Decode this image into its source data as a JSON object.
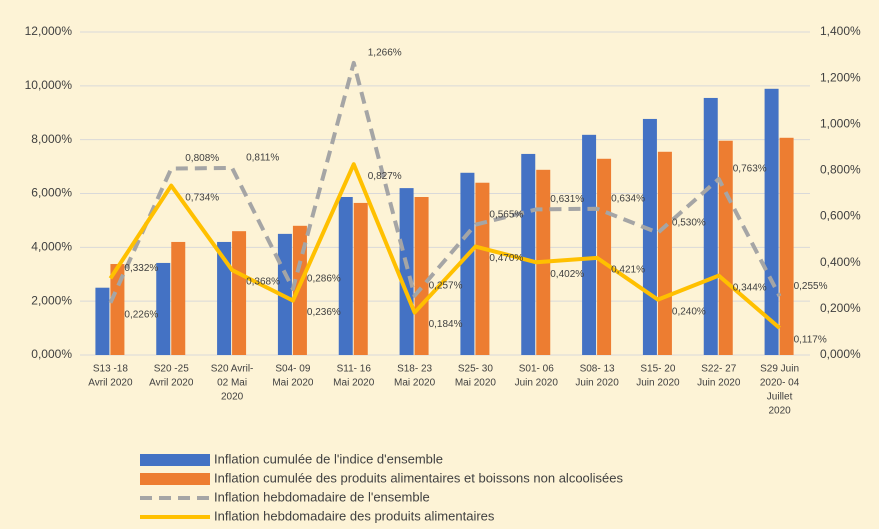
{
  "chart_data": {
    "type": "bar-line",
    "categories": [
      [
        "S13 -18",
        "Avril 2020"
      ],
      [
        "S20 -25",
        "Avril 2020"
      ],
      [
        "S20 Avril-",
        "02 Mai",
        "2020"
      ],
      [
        "S04- 09",
        "Mai 2020"
      ],
      [
        "S11- 16",
        "Mai 2020"
      ],
      [
        "S18- 23",
        "Mai 2020"
      ],
      [
        "S25- 30",
        "Mai 2020"
      ],
      [
        "S01- 06",
        "Juin 2020"
      ],
      [
        "S08- 13",
        "Juin 2020"
      ],
      [
        "S15- 20",
        "Juin 2020"
      ],
      [
        "S22- 27",
        "Juin 2020"
      ],
      [
        "S29 Juin",
        "2020- 04",
        "Juillet",
        "2020"
      ]
    ],
    "series": [
      {
        "name": "Inflation cumulée de l'indice d'ensemble",
        "kind": "bar",
        "color": "#4472c4",
        "values": [
          2.5,
          3.42,
          4.2,
          4.5,
          5.87,
          6.2,
          6.77,
          7.47,
          8.18,
          8.77,
          9.55,
          9.89
        ]
      },
      {
        "name": "Inflation cumulée des produits alimentaires et boissons non alcoolisées",
        "kind": "bar",
        "color": "#ed7d31",
        "values": [
          3.38,
          4.2,
          4.6,
          4.8,
          5.65,
          5.87,
          6.4,
          6.88,
          7.29,
          7.55,
          7.96,
          8.07
        ]
      },
      {
        "name": "Inflation hebdomadaire de l'ensemble",
        "kind": "line",
        "dashed": true,
        "axis": "y2",
        "color": "#a5a5a5",
        "values": [
          0.226,
          0.808,
          0.811,
          0.286,
          1.266,
          0.257,
          0.565,
          0.631,
          0.634,
          0.53,
          0.763,
          0.255
        ],
        "value_labels": [
          "0,226%",
          "0,808%",
          "0,811%",
          "0,286%",
          "1,266%",
          "0,257%",
          "0,565%",
          "0,631%",
          "0,634%",
          "0,530%",
          "0,763%",
          "0,255%"
        ]
      },
      {
        "name": "Inflation hebdomadaire des produits alimentaires",
        "kind": "line",
        "axis": "y2",
        "color": "#ffc000",
        "values": [
          0.332,
          0.734,
          0.368,
          0.236,
          0.827,
          0.184,
          0.47,
          0.402,
          0.421,
          0.24,
          0.344,
          0.117
        ],
        "value_labels": [
          "0,332%",
          "0,734%",
          "0,368%",
          "0,236%",
          "0,827%",
          "0,184%",
          "0,470%",
          "0,402%",
          "0,421%",
          "0,240%",
          "0,344%",
          "0,117%"
        ]
      }
    ],
    "ylim": [
      0,
      12
    ],
    "yticks": [
      {
        "value": 0,
        "label": "0,000%"
      },
      {
        "value": 2,
        "label": "2,000%"
      },
      {
        "value": 4,
        "label": "4,000%"
      },
      {
        "value": 6,
        "label": "6,000%"
      },
      {
        "value": 8,
        "label": "8,000%"
      },
      {
        "value": 10,
        "label": "10,000%"
      },
      {
        "value": 12,
        "label": "12,000%"
      }
    ],
    "y2lim": [
      0,
      1.4
    ],
    "y2ticks": [
      {
        "value": 0,
        "label": "0,000%"
      },
      {
        "value": 0.2,
        "label": "0,200%"
      },
      {
        "value": 0.4,
        "label": "0,400%"
      },
      {
        "value": 0.6,
        "label": "0,600%"
      },
      {
        "value": 0.8,
        "label": "0,800%"
      },
      {
        "value": 1.0,
        "label": "1,000%"
      },
      {
        "value": 1.2,
        "label": "1,200%"
      },
      {
        "value": 1.4,
        "label": "1,400%"
      }
    ],
    "grid": true,
    "legend": "bottom"
  }
}
